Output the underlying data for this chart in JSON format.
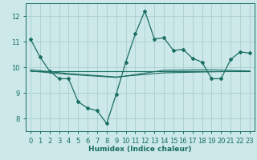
{
  "xlabel": "Humidex (Indice chaleur)",
  "xlim": [
    -0.5,
    23.5
  ],
  "ylim": [
    7.5,
    12.5
  ],
  "yticks": [
    8,
    9,
    10,
    11,
    12
  ],
  "xticks": [
    0,
    1,
    2,
    3,
    4,
    5,
    6,
    7,
    8,
    9,
    10,
    11,
    12,
    13,
    14,
    15,
    16,
    17,
    18,
    19,
    20,
    21,
    22,
    23
  ],
  "bg_color": "#cce8e8",
  "grid_color": "#aacece",
  "line_color": "#1a6e64",
  "lines": [
    {
      "x": [
        0,
        1,
        2,
        3,
        4,
        5,
        6,
        7,
        8,
        9,
        10,
        11,
        12,
        13,
        14,
        15,
        16,
        17,
        18,
        19,
        20,
        21,
        22,
        23
      ],
      "y": [
        11.1,
        10.4,
        9.85,
        9.55,
        9.55,
        8.65,
        8.4,
        8.3,
        7.8,
        8.95,
        10.2,
        11.3,
        12.2,
        11.1,
        11.15,
        10.65,
        10.7,
        10.35,
        10.2,
        9.55,
        9.55,
        10.3,
        10.6,
        10.55
      ],
      "marker": true
    },
    {
      "x": [
        0,
        23
      ],
      "y": [
        9.85,
        9.85
      ],
      "marker": false
    },
    {
      "x": [
        0,
        4,
        9,
        14,
        19,
        23
      ],
      "y": [
        9.9,
        9.75,
        9.62,
        9.78,
        9.82,
        9.85
      ],
      "marker": false
    },
    {
      "x": [
        0,
        4,
        9,
        14,
        19,
        23
      ],
      "y": [
        9.85,
        9.72,
        9.6,
        9.88,
        9.9,
        9.85
      ],
      "marker": false
    }
  ]
}
